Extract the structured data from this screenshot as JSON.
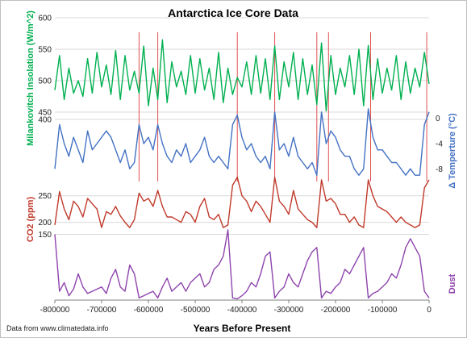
{
  "chart_data": {
    "type": "line",
    "title": "Antarctica Ice Core Data",
    "xlabel": "Years Before Present",
    "credit": "Data from www.climatedata.info",
    "x_range": [
      -800000,
      0
    ],
    "x_ticks": [
      -800000,
      -700000,
      -600000,
      -500000,
      -400000,
      -300000,
      -200000,
      -100000,
      0
    ],
    "x_tick_labels": [
      "-800000",
      "-700000",
      "-600000",
      "-500000",
      "-400000",
      "-300000",
      "-200000",
      "-100000",
      "0"
    ],
    "panels": [
      {
        "id": "insolation",
        "ylabel": "Milankovitch Insolation  (W/m^2)",
        "ylim": [
          450,
          600
        ],
        "ticks": [
          450,
          500,
          550,
          600
        ],
        "tick_labels": [
          "450",
          "500",
          "550",
          "600"
        ],
        "axis_side": "left",
        "color": "#00b050"
      },
      {
        "id": "temperature",
        "ylabel": "Δ Temperture  (°C)",
        "ylim": [
          -10,
          2
        ],
        "ticks": [
          0,
          -4,
          -8
        ],
        "tick_labels": [
          "0",
          "-4",
          "-8"
        ],
        "axis_side": "right",
        "color": "#4472c4"
      },
      {
        "id": "co2",
        "ylabel": "CO2  (ppm)",
        "ylim": [
          175,
          280
        ],
        "ticks": [
          200,
          250
        ],
        "tick_labels": [
          "200",
          "250"
        ],
        "axis_side": "left",
        "color": "#c0392b"
      },
      {
        "id": "dust",
        "ylabel": "Dust",
        "ylim": [
          0,
          160
        ],
        "ticks": [
          150
        ],
        "tick_labels": [
          "150"
        ],
        "axis_side": "left",
        "color": "#8e44ad"
      }
    ],
    "left_axis_top_label": "400",
    "interglacial_markers": [
      -620000,
      -580000,
      -410000,
      -330000,
      -240000,
      -215000,
      -125000,
      -5000
    ],
    "series": [
      {
        "name": "Insolation",
        "panel": "insolation",
        "x": [
          -800000,
          -790000,
          -780000,
          -770000,
          -760000,
          -750000,
          -740000,
          -730000,
          -720000,
          -710000,
          -700000,
          -690000,
          -680000,
          -670000,
          -660000,
          -650000,
          -640000,
          -630000,
          -620000,
          -610000,
          -600000,
          -590000,
          -580000,
          -570000,
          -560000,
          -550000,
          -540000,
          -530000,
          -520000,
          -510000,
          -500000,
          -490000,
          -480000,
          -470000,
          -460000,
          -450000,
          -440000,
          -430000,
          -420000,
          -410000,
          -400000,
          -390000,
          -380000,
          -370000,
          -360000,
          -350000,
          -340000,
          -330000,
          -320000,
          -310000,
          -300000,
          -290000,
          -280000,
          -270000,
          -260000,
          -250000,
          -240000,
          -230000,
          -220000,
          -210000,
          -200000,
          -190000,
          -180000,
          -170000,
          -160000,
          -150000,
          -140000,
          -130000,
          -120000,
          -110000,
          -100000,
          -90000,
          -80000,
          -70000,
          -60000,
          -50000,
          -40000,
          -30000,
          -20000,
          -10000,
          0
        ],
        "y": [
          485,
          540,
          470,
          520,
          480,
          500,
          475,
          535,
          480,
          545,
          490,
          525,
          478,
          548,
          470,
          540,
          485,
          515,
          480,
          555,
          460,
          520,
          470,
          565,
          465,
          530,
          490,
          515,
          478,
          540,
          480,
          535,
          485,
          520,
          470,
          545,
          465,
          520,
          478,
          505,
          490,
          530,
          478,
          540,
          480,
          535,
          470,
          555,
          470,
          530,
          490,
          545,
          470,
          535,
          478,
          525,
          462,
          560,
          452,
          540,
          478,
          520,
          490,
          540,
          478,
          550,
          460,
          556,
          470,
          535,
          480,
          520,
          485,
          540,
          470,
          530,
          480,
          520,
          490,
          545,
          495
        ]
      },
      {
        "name": "Temperature",
        "panel": "temperature",
        "x": [
          -800000,
          -790000,
          -780000,
          -770000,
          -760000,
          -750000,
          -740000,
          -730000,
          -720000,
          -710000,
          -700000,
          -690000,
          -680000,
          -670000,
          -660000,
          -650000,
          -640000,
          -630000,
          -620000,
          -610000,
          -600000,
          -590000,
          -580000,
          -570000,
          -560000,
          -550000,
          -540000,
          -530000,
          -520000,
          -510000,
          -500000,
          -490000,
          -480000,
          -470000,
          -460000,
          -450000,
          -440000,
          -430000,
          -420000,
          -410000,
          -400000,
          -390000,
          -380000,
          -370000,
          -360000,
          -350000,
          -340000,
          -330000,
          -320000,
          -310000,
          -300000,
          -290000,
          -280000,
          -270000,
          -260000,
          -250000,
          -240000,
          -230000,
          -220000,
          -210000,
          -200000,
          -190000,
          -180000,
          -170000,
          -160000,
          -150000,
          -140000,
          -130000,
          -120000,
          -110000,
          -100000,
          -90000,
          -80000,
          -70000,
          -60000,
          -50000,
          -40000,
          -30000,
          -20000,
          -10000,
          0
        ],
        "y": [
          -8,
          -1,
          -4,
          -6,
          -3,
          -5,
          -7,
          -2,
          -5,
          -4,
          -3,
          -2,
          -3,
          -5,
          -7,
          -5,
          -8,
          -7,
          -1,
          -4,
          -3,
          -5,
          -1,
          -4,
          -6,
          -7,
          -5,
          -6,
          -4,
          -7,
          -6,
          -5,
          -3,
          -6,
          -7,
          -6,
          -7,
          -8,
          -1,
          0.5,
          -3,
          -5,
          -4,
          -6,
          -7,
          -6,
          -8,
          1,
          -5,
          -4,
          -6,
          -3,
          -6,
          -7,
          -8,
          -7,
          -9,
          1,
          -4,
          -2,
          -3,
          -5,
          -6,
          -6,
          -8,
          -9,
          -8,
          1.5,
          -3,
          -5,
          -5,
          -6,
          -7,
          -7,
          -8,
          -9,
          -8,
          -9,
          -9,
          -1,
          1
        ]
      },
      {
        "name": "CO2",
        "panel": "co2",
        "x": [
          -800000,
          -790000,
          -780000,
          -770000,
          -760000,
          -750000,
          -740000,
          -730000,
          -720000,
          -710000,
          -700000,
          -690000,
          -680000,
          -670000,
          -660000,
          -650000,
          -640000,
          -630000,
          -620000,
          -610000,
          -600000,
          -590000,
          -580000,
          -570000,
          -560000,
          -550000,
          -540000,
          -530000,
          -520000,
          -510000,
          -500000,
          -490000,
          -480000,
          -470000,
          -460000,
          -450000,
          -440000,
          -430000,
          -420000,
          -410000,
          -400000,
          -390000,
          -380000,
          -370000,
          -360000,
          -350000,
          -340000,
          -330000,
          -320000,
          -310000,
          -300000,
          -290000,
          -280000,
          -270000,
          -260000,
          -250000,
          -240000,
          -230000,
          -220000,
          -210000,
          -200000,
          -190000,
          -180000,
          -170000,
          -160000,
          -150000,
          -140000,
          -130000,
          -120000,
          -110000,
          -100000,
          -90000,
          -80000,
          -70000,
          -60000,
          -50000,
          -40000,
          -30000,
          -20000,
          -10000,
          0
        ],
        "y": [
          195,
          258,
          225,
          205,
          240,
          230,
          210,
          245,
          235,
          225,
          190,
          220,
          215,
          230,
          212,
          200,
          190,
          205,
          255,
          240,
          245,
          230,
          260,
          230,
          210,
          210,
          205,
          200,
          220,
          215,
          200,
          230,
          245,
          210,
          205,
          215,
          190,
          195,
          270,
          285,
          250,
          240,
          220,
          240,
          230,
          215,
          200,
          285,
          240,
          230,
          215,
          260,
          225,
          215,
          205,
          200,
          190,
          280,
          240,
          245,
          235,
          215,
          215,
          200,
          210,
          195,
          190,
          280,
          250,
          230,
          225,
          220,
          210,
          200,
          210,
          200,
          195,
          190,
          195,
          265,
          280
        ]
      },
      {
        "name": "Dust",
        "panel": "dust",
        "x": [
          -800000,
          -790000,
          -780000,
          -770000,
          -760000,
          -750000,
          -740000,
          -730000,
          -720000,
          -710000,
          -700000,
          -690000,
          -680000,
          -670000,
          -660000,
          -650000,
          -640000,
          -630000,
          -620000,
          -610000,
          -600000,
          -590000,
          -580000,
          -570000,
          -560000,
          -550000,
          -540000,
          -530000,
          -520000,
          -510000,
          -500000,
          -490000,
          -480000,
          -470000,
          -460000,
          -450000,
          -440000,
          -430000,
          -420000,
          -410000,
          -400000,
          -390000,
          -380000,
          -370000,
          -360000,
          -350000,
          -340000,
          -330000,
          -320000,
          -310000,
          -300000,
          -290000,
          -280000,
          -270000,
          -260000,
          -250000,
          -240000,
          -230000,
          -220000,
          -210000,
          -200000,
          -190000,
          -180000,
          -170000,
          -160000,
          -150000,
          -140000,
          -130000,
          -120000,
          -110000,
          -100000,
          -90000,
          -80000,
          -70000,
          -60000,
          -50000,
          -40000,
          -30000,
          -20000,
          -10000,
          0
        ],
        "y": [
          150,
          20,
          40,
          10,
          25,
          60,
          30,
          15,
          20,
          25,
          30,
          15,
          50,
          70,
          30,
          20,
          80,
          60,
          5,
          10,
          15,
          20,
          5,
          30,
          50,
          20,
          30,
          40,
          20,
          40,
          50,
          60,
          30,
          40,
          70,
          80,
          100,
          160,
          5,
          3,
          10,
          20,
          40,
          30,
          60,
          100,
          110,
          5,
          20,
          30,
          60,
          40,
          30,
          60,
          90,
          110,
          120,
          5,
          20,
          15,
          30,
          40,
          70,
          60,
          80,
          100,
          120,
          5,
          15,
          20,
          30,
          40,
          60,
          50,
          80,
          120,
          140,
          120,
          100,
          20,
          5
        ]
      }
    ]
  }
}
